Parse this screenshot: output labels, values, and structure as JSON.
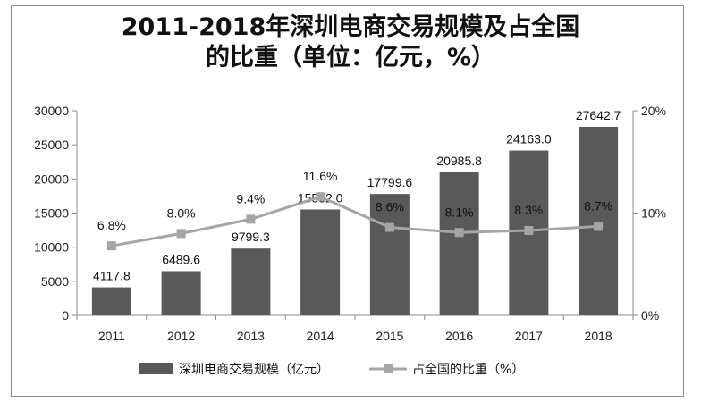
{
  "title": {
    "line1": "2011-2018年深圳电商交易规模及占全国",
    "line2": "的比重（单位：亿元，%）"
  },
  "chart_data": {
    "type": "bar",
    "categories": [
      "2011",
      "2012",
      "2013",
      "2014",
      "2015",
      "2016",
      "2017",
      "2018"
    ],
    "series": [
      {
        "name": "深圳电商交易规模（亿元）",
        "type": "bar",
        "axis": "left",
        "color": "#595959",
        "values": [
          4117.8,
          6489.6,
          9799.3,
          15532.0,
          17799.6,
          20985.8,
          24163.0,
          27642.7
        ],
        "labels": [
          "4117.8",
          "6489.6",
          "9799.3",
          "15532.0",
          "17799.6",
          "20985.8",
          "24163.0",
          "27642.7"
        ]
      },
      {
        "name": "占全国的比重（%）",
        "type": "line",
        "axis": "right",
        "color": "#a5a5a5",
        "values": [
          6.8,
          8.0,
          9.4,
          11.6,
          8.6,
          8.1,
          8.3,
          8.7
        ],
        "labels": [
          "6.8%",
          "8.0%",
          "9.4%",
          "11.6%",
          "8.6%",
          "8.1%",
          "8.3%",
          "8.7%"
        ]
      }
    ],
    "y_left": {
      "min": 0,
      "max": 30000,
      "ticks": [
        "0",
        "5000",
        "10000",
        "15000",
        "20000",
        "25000",
        "30000"
      ]
    },
    "y_right": {
      "min": 0,
      "max": 20,
      "ticks": [
        "0%",
        "10%",
        "20%"
      ]
    },
    "grid": false,
    "legend": "bottom"
  }
}
